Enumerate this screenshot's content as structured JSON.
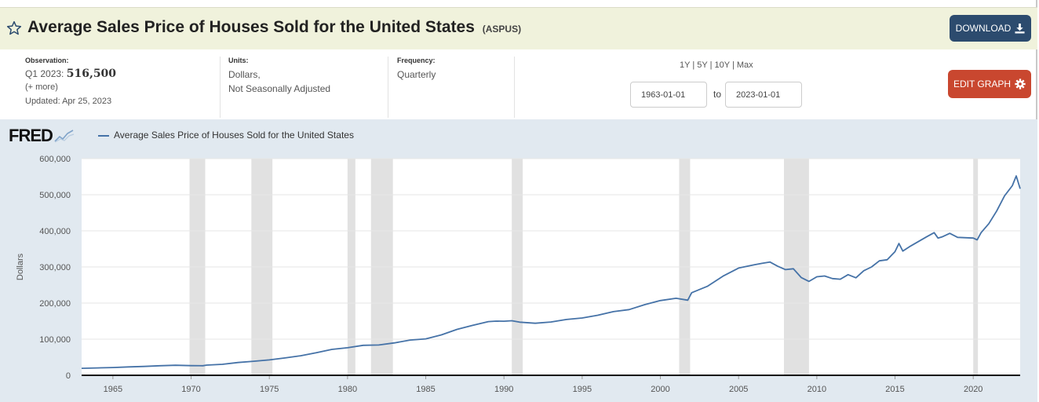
{
  "header": {
    "title": "Average Sales Price of Houses Sold for the United States",
    "series_id": "(ASPUS)",
    "download_label": "DOWNLOAD",
    "star_icon": "star-outline-icon",
    "download_icon": "download-icon"
  },
  "meta": {
    "observation_label": "Observation:",
    "observation_period": "Q1 2023:",
    "observation_value": "516,500",
    "more": "(+ more)",
    "updated": "Updated: Apr 25, 2023",
    "units_label": "Units:",
    "units_line1": "Dollars,",
    "units_line2": "Not Seasonally Adjusted",
    "frequency_label": "Frequency:",
    "frequency": "Quarterly"
  },
  "controls": {
    "range_1y": "1Y",
    "range_5y": "5Y",
    "range_10y": "10Y",
    "range_max": "Max",
    "sep": "|",
    "start_date": "1963-01-01",
    "to_label": "to",
    "end_date": "2023-01-01",
    "edit_graph_label": "EDIT GRAPH",
    "gear_icon": "gear-icon"
  },
  "chart_data": {
    "type": "line",
    "logo": "FRED",
    "legend": "Average Sales Price of Houses Sold for the United States",
    "ylabel": "Dollars",
    "ylim": [
      0,
      600000
    ],
    "xlim": [
      1963.0,
      2023.0
    ],
    "yticks": [
      "0",
      "100,000",
      "200,000",
      "300,000",
      "400,000",
      "500,000",
      "600,000"
    ],
    "ytick_values": [
      0,
      100000,
      200000,
      300000,
      400000,
      500000,
      600000
    ],
    "xticks": [
      "1965",
      "1970",
      "1975",
      "1980",
      "1985",
      "1990",
      "1995",
      "2000",
      "2005",
      "2010",
      "2015",
      "2020"
    ],
    "xtick_values": [
      1965,
      1970,
      1975,
      1980,
      1985,
      1990,
      1995,
      2000,
      2005,
      2010,
      2015,
      2020
    ],
    "line_color": "#4572a7",
    "recessions": [
      [
        1969.9,
        1970.9
      ],
      [
        1973.85,
        1975.2
      ],
      [
        1980.0,
        1980.5
      ],
      [
        1981.5,
        1982.9
      ],
      [
        1990.5,
        1991.2
      ],
      [
        2001.2,
        2001.9
      ],
      [
        2007.9,
        2009.5
      ],
      [
        2020.0,
        2020.3
      ]
    ],
    "series": [
      {
        "name": "Average Sales Price of Houses Sold for the United States",
        "x": [
          1963.0,
          1964.0,
          1965.0,
          1966.0,
          1967.0,
          1968.0,
          1969.0,
          1970.0,
          1970.75,
          1971.0,
          1972.0,
          1973.0,
          1974.0,
          1975.0,
          1976.0,
          1977.0,
          1978.0,
          1979.0,
          1980.0,
          1981.0,
          1982.0,
          1983.0,
          1984.0,
          1985.0,
          1986.0,
          1987.0,
          1988.0,
          1989.0,
          1989.5,
          1990.0,
          1990.5,
          1991.0,
          1992.0,
          1993.0,
          1994.0,
          1995.0,
          1996.0,
          1997.0,
          1998.0,
          1999.0,
          2000.0,
          2001.0,
          2001.75,
          2002.0,
          2003.0,
          2004.0,
          2005.0,
          2006.0,
          2006.5,
          2007.0,
          2007.5,
          2008.0,
          2008.5,
          2009.0,
          2009.5,
          2010.0,
          2010.5,
          2011.0,
          2011.5,
          2012.0,
          2012.5,
          2013.0,
          2013.5,
          2014.0,
          2014.5,
          2015.0,
          2015.25,
          2015.5,
          2016.0,
          2017.0,
          2017.5,
          2017.75,
          2018.0,
          2018.5,
          2019.0,
          2020.0,
          2020.25,
          2020.5,
          2021.0,
          2021.5,
          2022.0,
          2022.5,
          2022.75,
          2023.0
        ],
        "y": [
          19300,
          20500,
          21500,
          23300,
          24600,
          26600,
          27900,
          26700,
          26500,
          28300,
          30500,
          35500,
          38900,
          42600,
          48000,
          54200,
          62500,
          71800,
          76400,
          83000,
          83900,
          89800,
          97600,
          100800,
          111900,
          127200,
          138300,
          148800,
          150000,
          149800,
          151000,
          147200,
          144100,
          147700,
          154500,
          158700,
          166400,
          176200,
          181900,
          195600,
          207000,
          213200,
          208000,
          228700,
          246300,
          274500,
          297000,
          305900,
          310000,
          313600,
          302000,
          292600,
          295000,
          270900,
          260000,
          272900,
          275000,
          267900,
          266000,
          278700,
          270000,
          289500,
          300000,
          317000,
          320000,
          342500,
          365000,
          344000,
          358000,
          383000,
          395000,
          380000,
          383000,
          393000,
          382000,
          380000,
          375000,
          395000,
          420000,
          455000,
          497000,
          525000,
          552000,
          516500
        ]
      }
    ]
  }
}
